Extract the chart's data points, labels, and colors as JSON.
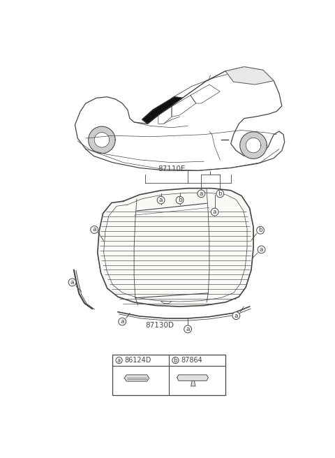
{
  "bg_color": "#ffffff",
  "fig_width": 4.8,
  "fig_height": 6.56,
  "dpi": 100,
  "car_label": "87110E",
  "glass_label": "87130D",
  "legend_a_code": "86124D",
  "legend_b_code": "87864",
  "line_color": "#444444",
  "light_gray": "#d8d8d8",
  "very_light": "#f5f5f5"
}
